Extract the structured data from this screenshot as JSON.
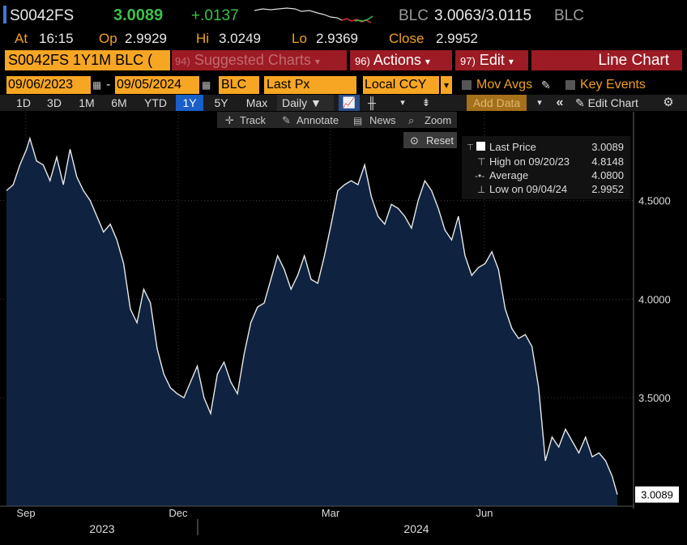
{
  "header": {
    "ticker": "S0042FS",
    "last": "3.0089",
    "change": "+.0137",
    "bid_src": "BLC",
    "bid_ask": "3.0063/3.0115",
    "ask_src": "BLC",
    "time_label": "At",
    "time": "16:15",
    "open_label": "Op",
    "open": "2.9929",
    "high_label": "Hi",
    "high": "3.0249",
    "low_label": "Lo",
    "low": "2.9369",
    "close_label": "Close",
    "close": "2.9952"
  },
  "toolbar": {
    "security": "S0042FS 1Y1M BLC (",
    "suggested_num": "94)",
    "suggested": "Suggested Charts",
    "actions_num": "96)",
    "actions": "Actions",
    "edit_num": "97)",
    "edit": "Edit",
    "chart_type": "Line Chart",
    "start_date": "09/06/2023",
    "dash": "-",
    "end_date": "09/05/2024",
    "source": "BLC",
    "field": "Last Px",
    "currency": "Local CCY",
    "mov_avgs": "Mov Avgs",
    "key_events": "Key Events",
    "periods": [
      "1D",
      "3D",
      "1M",
      "6M",
      "YTD",
      "1Y",
      "5Y",
      "Max"
    ],
    "active_period": "1Y",
    "frequency": "Daily",
    "add_data": "Add Data",
    "edit_chart": "Edit Chart",
    "track": "Track",
    "annotate": "Annotate",
    "news": "News",
    "zoom": "Zoom",
    "reset": "Reset"
  },
  "legend": {
    "last_label": "Last Price",
    "last_value": "3.0089",
    "high_label": "High on 09/20/23",
    "high_value": "4.8148",
    "avg_label": "Average",
    "avg_value": "4.0800",
    "low_label": "Low on 09/04/24",
    "low_value": "2.9952"
  },
  "colors": {
    "accent_orange": "#f6a623",
    "red_button": "#9c1b24",
    "up_green": "#3cc04a",
    "fill": "#0f2340",
    "line": "#e8e8e8"
  },
  "chart_data": {
    "type": "area",
    "title": "",
    "xlabel": "",
    "ylabel": "",
    "x_ticks": [
      "Sep",
      "Dec",
      "Mar",
      "Jun"
    ],
    "x_years": [
      "2023",
      "2024"
    ],
    "y_ticks": [
      "3.5000",
      "4.0000",
      "4.5000"
    ],
    "last_value_label": "3.0089",
    "ylim": [
      2.95,
      4.95
    ],
    "x": [
      "2023-09-06",
      "2023-09-10",
      "2023-09-14",
      "2023-09-18",
      "2023-09-20",
      "2023-09-24",
      "2023-09-28",
      "2023-10-02",
      "2023-10-06",
      "2023-10-10",
      "2023-10-14",
      "2023-10-18",
      "2023-10-22",
      "2023-10-26",
      "2023-10-30",
      "2023-11-03",
      "2023-11-07",
      "2023-11-11",
      "2023-11-15",
      "2023-11-19",
      "2023-11-23",
      "2023-11-27",
      "2023-12-01",
      "2023-12-05",
      "2023-12-09",
      "2023-12-13",
      "2023-12-17",
      "2023-12-21",
      "2023-12-25",
      "2023-12-29",
      "2024-01-02",
      "2024-01-06",
      "2024-01-10",
      "2024-01-14",
      "2024-01-18",
      "2024-01-22",
      "2024-01-26",
      "2024-01-30",
      "2024-02-03",
      "2024-02-07",
      "2024-02-11",
      "2024-02-15",
      "2024-02-19",
      "2024-02-23",
      "2024-02-27",
      "2024-03-02",
      "2024-03-06",
      "2024-03-10",
      "2024-03-14",
      "2024-03-18",
      "2024-03-22",
      "2024-03-26",
      "2024-03-30",
      "2024-04-03",
      "2024-04-07",
      "2024-04-11",
      "2024-04-15",
      "2024-04-19",
      "2024-04-23",
      "2024-04-27",
      "2024-05-01",
      "2024-05-05",
      "2024-05-09",
      "2024-05-13",
      "2024-05-17",
      "2024-05-21",
      "2024-05-25",
      "2024-05-29",
      "2024-06-02",
      "2024-06-06",
      "2024-06-10",
      "2024-06-14",
      "2024-06-18",
      "2024-06-22",
      "2024-06-26",
      "2024-06-30",
      "2024-07-04",
      "2024-07-08",
      "2024-07-12",
      "2024-07-16",
      "2024-07-20",
      "2024-07-24",
      "2024-07-28",
      "2024-08-01",
      "2024-08-05",
      "2024-08-09",
      "2024-08-13",
      "2024-08-17",
      "2024-08-21",
      "2024-08-25",
      "2024-08-29",
      "2024-09-02",
      "2024-09-05"
    ],
    "values": [
      4.55,
      4.58,
      4.68,
      4.76,
      4.8148,
      4.7,
      4.68,
      4.6,
      4.72,
      4.58,
      4.76,
      4.62,
      4.55,
      4.5,
      4.42,
      4.34,
      4.38,
      4.3,
      4.18,
      3.95,
      3.88,
      4.05,
      3.98,
      3.75,
      3.62,
      3.55,
      3.52,
      3.5,
      3.58,
      3.66,
      3.5,
      3.42,
      3.62,
      3.68,
      3.58,
      3.52,
      3.72,
      3.88,
      3.96,
      3.98,
      4.1,
      4.22,
      4.15,
      4.05,
      4.12,
      4.22,
      4.1,
      4.08,
      4.22,
      4.38,
      4.55,
      4.58,
      4.6,
      4.58,
      4.68,
      4.52,
      4.42,
      4.38,
      4.48,
      4.46,
      4.42,
      4.36,
      4.5,
      4.6,
      4.55,
      4.46,
      4.35,
      4.3,
      4.42,
      4.22,
      4.12,
      4.16,
      4.18,
      4.24,
      4.15,
      3.95,
      3.85,
      3.8,
      3.82,
      3.76,
      3.55,
      3.18,
      3.3,
      3.25,
      3.34,
      3.28,
      3.22,
      3.3,
      3.2,
      3.22,
      3.18,
      3.1,
      3.0089
    ]
  }
}
